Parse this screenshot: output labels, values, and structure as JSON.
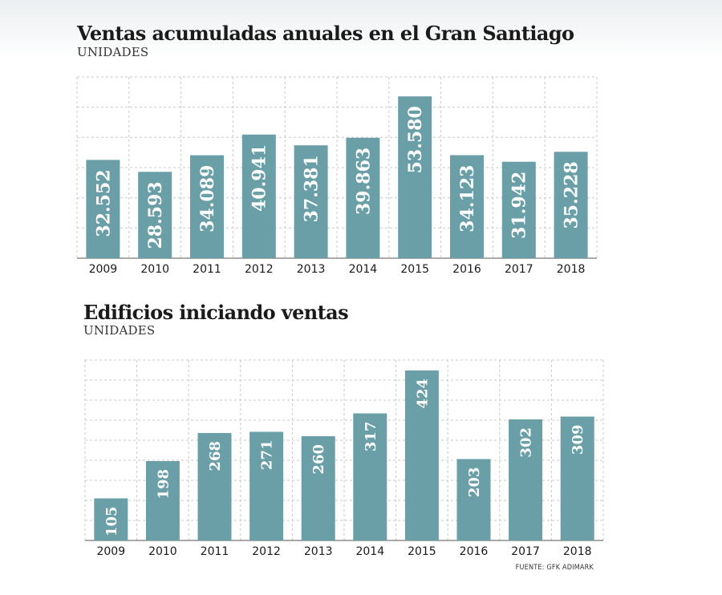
{
  "chart_data": [
    {
      "type": "bar",
      "title": "Ventas acumuladas anuales en el Gran Santiago",
      "subtitle": "UNIDADES",
      "categories": [
        "2009",
        "2010",
        "2011",
        "2012",
        "2013",
        "2014",
        "2015",
        "2016",
        "2017",
        "2018"
      ],
      "values": [
        32552,
        28593,
        34089,
        40941,
        37381,
        39863,
        53580,
        34123,
        31942,
        35228
      ],
      "value_labels": [
        "32.552",
        "28.593",
        "34.089",
        "40.941",
        "37.381",
        "39.863",
        "53.580",
        "34.123",
        "31.942",
        "35.228"
      ],
      "ylim": [
        0,
        60000
      ],
      "grid": true,
      "bar_color": "#6a9fa7"
    },
    {
      "type": "bar",
      "title": "Edificios iniciando ventas",
      "subtitle": "UNIDADES",
      "categories": [
        "2009",
        "2010",
        "2011",
        "2012",
        "2013",
        "2014",
        "2015",
        "2016",
        "2017",
        "2018"
      ],
      "values": [
        105,
        198,
        268,
        271,
        260,
        317,
        424,
        203,
        302,
        309
      ],
      "value_labels": [
        "105",
        "198",
        "268",
        "271",
        "260",
        "317",
        "424",
        "203",
        "302",
        "309"
      ],
      "ylim": [
        0,
        450
      ],
      "grid": true,
      "bar_color": "#6a9fa7"
    }
  ],
  "source": "FUENTE: GFK ADIMARK"
}
